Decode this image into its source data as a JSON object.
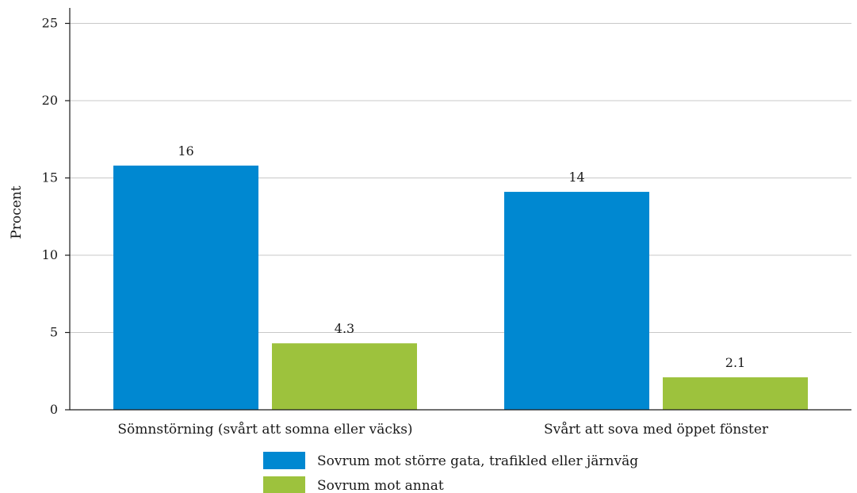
{
  "chart_data": {
    "type": "bar",
    "title": "",
    "xlabel": "",
    "ylabel": "Procent",
    "ylim": [
      0,
      26
    ],
    "yticks": [
      0,
      5,
      10,
      15,
      20,
      25
    ],
    "grid": true,
    "legend_position": "bottom",
    "categories": [
      "Sömnstörning (svårt att somna eller väcks)",
      "Svårt att sova med öppet fönster"
    ],
    "series": [
      {
        "name": "Sovrum mot större gata, trafikled eller järnväg",
        "color": "#0088d1",
        "values": [
          15.8,
          14.1
        ],
        "labels": [
          "16",
          "14"
        ]
      },
      {
        "name": "Sovrum mot annat",
        "color": "#9dc23d",
        "values": [
          4.3,
          2.1
        ],
        "labels": [
          "4.3",
          "2.1"
        ]
      }
    ]
  }
}
